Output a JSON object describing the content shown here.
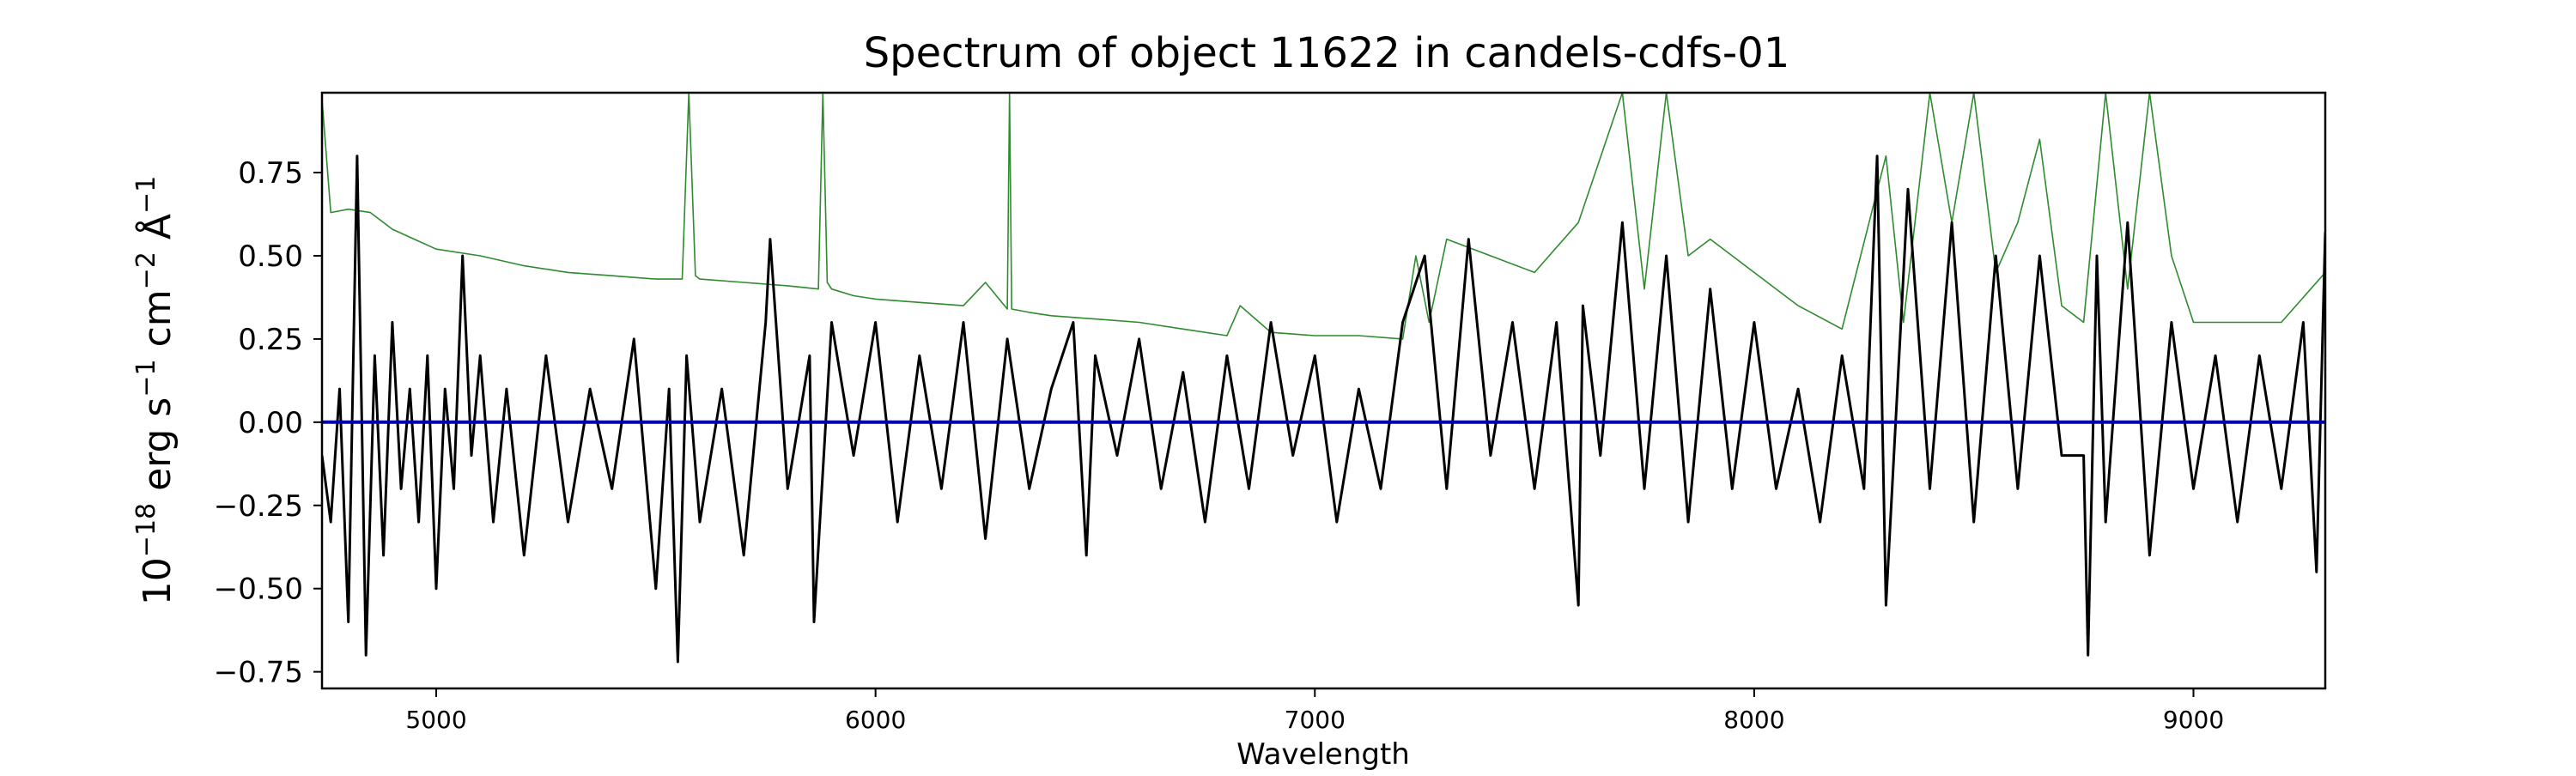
{
  "chart_data": {
    "type": "line",
    "title": "Spectrum of object 11622 in candels-cdfs-01",
    "xlabel": "Wavelength",
    "ylabel_parts": {
      "base": "10",
      "exp1": "−18",
      "unit1": " erg s",
      "exp2": "−1",
      "unit2": " cm",
      "exp3": "−2",
      "unit3": " Å",
      "exp4": "−1"
    },
    "xlim": [
      4740,
      9300
    ],
    "ylim": [
      -0.8,
      0.99
    ],
    "xticks": [
      5000,
      6000,
      7000,
      8000,
      9000
    ],
    "xtick_labels": [
      "5000",
      "6000",
      "7000",
      "8000",
      "9000"
    ],
    "yticks": [
      -0.75,
      -0.5,
      -0.25,
      0.0,
      0.25,
      0.5,
      0.75
    ],
    "ytick_labels": [
      "−0.75",
      "−0.50",
      "−0.25",
      "0.00",
      "0.25",
      "0.50",
      "0.75"
    ],
    "grid": false,
    "legend": "none",
    "series": [
      {
        "color": "#2e8b2e",
        "x": [
          4740,
          4760,
          4800,
          4850,
          4900,
          4950,
          5000,
          5100,
          5200,
          5300,
          5400,
          5500,
          5560,
          5575,
          5590,
          5600,
          5700,
          5800,
          5870,
          5880,
          5890,
          5900,
          5950,
          6000,
          6100,
          6200,
          6250,
          6300,
          6305,
          6310,
          6350,
          6400,
          6500,
          6600,
          6700,
          6800,
          6830,
          6900,
          7000,
          7100,
          7200,
          7230,
          7260,
          7300,
          7400,
          7500,
          7600,
          7700,
          7750,
          7800,
          7850,
          7900,
          8000,
          8100,
          8200,
          8300,
          8340,
          8400,
          8450,
          8500,
          8550,
          8600,
          8650,
          8700,
          8750,
          8800,
          8850,
          8900,
          8950,
          9000,
          9100,
          9200,
          9300
        ],
        "y": [
          0.97,
          0.63,
          0.64,
          0.63,
          0.58,
          0.55,
          0.52,
          0.5,
          0.47,
          0.45,
          0.44,
          0.43,
          0.43,
          0.99,
          0.44,
          0.43,
          0.42,
          0.41,
          0.4,
          0.99,
          0.42,
          0.4,
          0.38,
          0.37,
          0.36,
          0.35,
          0.42,
          0.34,
          0.99,
          0.34,
          0.33,
          0.32,
          0.31,
          0.3,
          0.28,
          0.26,
          0.35,
          0.27,
          0.26,
          0.26,
          0.25,
          0.5,
          0.3,
          0.55,
          0.5,
          0.45,
          0.6,
          0.99,
          0.4,
          0.99,
          0.5,
          0.55,
          0.45,
          0.35,
          0.28,
          0.8,
          0.3,
          0.99,
          0.6,
          0.99,
          0.45,
          0.6,
          0.85,
          0.35,
          0.3,
          0.99,
          0.4,
          0.99,
          0.5,
          0.3,
          0.3,
          0.3,
          0.45
        ]
      },
      {
        "color": "#000000",
        "x": [
          4740,
          4760,
          4780,
          4800,
          4820,
          4840,
          4860,
          4880,
          4900,
          4920,
          4940,
          4960,
          4980,
          5000,
          5020,
          5040,
          5060,
          5080,
          5100,
          5130,
          5160,
          5200,
          5250,
          5300,
          5350,
          5400,
          5450,
          5500,
          5530,
          5550,
          5570,
          5600,
          5650,
          5700,
          5750,
          5760,
          5800,
          5850,
          5860,
          5900,
          5950,
          6000,
          6050,
          6100,
          6150,
          6200,
          6250,
          6300,
          6350,
          6400,
          6450,
          6480,
          6500,
          6550,
          6600,
          6650,
          6700,
          6750,
          6800,
          6850,
          6900,
          6950,
          7000,
          7050,
          7100,
          7150,
          7200,
          7250,
          7300,
          7350,
          7400,
          7450,
          7500,
          7550,
          7600,
          7610,
          7650,
          7700,
          7750,
          7800,
          7850,
          7900,
          7950,
          8000,
          8050,
          8100,
          8150,
          8200,
          8250,
          8280,
          8300,
          8350,
          8400,
          8450,
          8500,
          8550,
          8600,
          8650,
          8700,
          8750,
          8760,
          8780,
          8800,
          8850,
          8900,
          8950,
          9000,
          9050,
          9100,
          9150,
          9200,
          9250,
          9280,
          9300
        ],
        "y": [
          -0.1,
          -0.3,
          0.1,
          -0.6,
          0.8,
          -0.7,
          0.2,
          -0.4,
          0.3,
          -0.2,
          0.1,
          -0.3,
          0.2,
          -0.5,
          0.1,
          -0.2,
          0.5,
          -0.1,
          0.2,
          -0.3,
          0.1,
          -0.4,
          0.2,
          -0.3,
          0.1,
          -0.2,
          0.25,
          -0.5,
          0.1,
          -0.72,
          0.2,
          -0.3,
          0.1,
          -0.4,
          0.3,
          0.55,
          -0.2,
          0.2,
          -0.6,
          0.3,
          -0.1,
          0.3,
          -0.3,
          0.2,
          -0.2,
          0.3,
          -0.35,
          0.25,
          -0.2,
          0.1,
          0.3,
          -0.4,
          0.2,
          -0.1,
          0.25,
          -0.2,
          0.15,
          -0.3,
          0.2,
          -0.2,
          0.3,
          -0.1,
          0.2,
          -0.3,
          0.1,
          -0.2,
          0.3,
          0.5,
          -0.2,
          0.55,
          -0.1,
          0.3,
          -0.2,
          0.3,
          -0.55,
          0.35,
          -0.1,
          0.6,
          -0.2,
          0.5,
          -0.3,
          0.4,
          -0.2,
          0.3,
          -0.2,
          0.1,
          -0.3,
          0.2,
          -0.2,
          0.8,
          -0.55,
          0.7,
          -0.2,
          0.6,
          -0.3,
          0.5,
          -0.2,
          0.5,
          -0.1,
          -0.1,
          -0.7,
          0.5,
          -0.3,
          0.6,
          -0.4,
          0.3,
          -0.2,
          0.2,
          -0.3,
          0.2,
          -0.2,
          0.3,
          -0.45,
          0.57
        ]
      },
      {
        "color": "#0000aa",
        "x": [
          4740,
          9300
        ],
        "y": [
          0.0,
          0.0
        ]
      }
    ]
  }
}
